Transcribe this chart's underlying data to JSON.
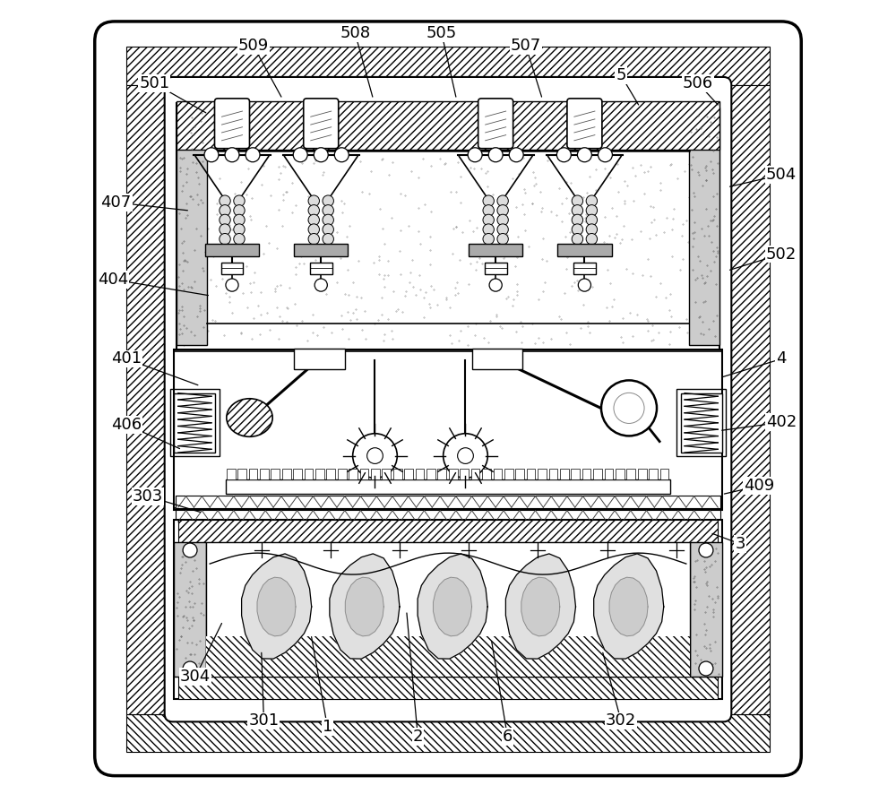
{
  "bg_color": "#ffffff",
  "line_color": "#000000",
  "font_size": 13,
  "label_positions": {
    "501": {
      "text": [
        0.13,
        0.895
      ],
      "arrow": [
        0.195,
        0.858
      ]
    },
    "509": {
      "text": [
        0.255,
        0.942
      ],
      "arrow": [
        0.29,
        0.878
      ]
    },
    "508": {
      "text": [
        0.383,
        0.958
      ],
      "arrow": [
        0.405,
        0.878
      ]
    },
    "505": {
      "text": [
        0.492,
        0.958
      ],
      "arrow": [
        0.51,
        0.878
      ]
    },
    "507": {
      "text": [
        0.598,
        0.942
      ],
      "arrow": [
        0.618,
        0.878
      ]
    },
    "5": {
      "text": [
        0.718,
        0.905
      ],
      "arrow": [
        0.74,
        0.868
      ]
    },
    "506": {
      "text": [
        0.815,
        0.895
      ],
      "arrow": [
        0.84,
        0.868
      ]
    },
    "504": {
      "text": [
        0.92,
        0.78
      ],
      "arrow": [
        0.855,
        0.765
      ]
    },
    "502": {
      "text": [
        0.92,
        0.68
      ],
      "arrow": [
        0.855,
        0.66
      ]
    },
    "4": {
      "text": [
        0.92,
        0.548
      ],
      "arrow": [
        0.845,
        0.525
      ]
    },
    "402": {
      "text": [
        0.92,
        0.468
      ],
      "arrow": [
        0.845,
        0.458
      ]
    },
    "409": {
      "text": [
        0.892,
        0.388
      ],
      "arrow": [
        0.848,
        0.378
      ]
    },
    "3": {
      "text": [
        0.868,
        0.315
      ],
      "arrow": [
        0.833,
        0.328
      ]
    },
    "302": {
      "text": [
        0.718,
        0.092
      ],
      "arrow": [
        0.695,
        0.178
      ]
    },
    "6": {
      "text": [
        0.575,
        0.072
      ],
      "arrow": [
        0.555,
        0.192
      ]
    },
    "2": {
      "text": [
        0.462,
        0.072
      ],
      "arrow": [
        0.448,
        0.228
      ]
    },
    "1": {
      "text": [
        0.348,
        0.085
      ],
      "arrow": [
        0.328,
        0.198
      ]
    },
    "301": {
      "text": [
        0.268,
        0.092
      ],
      "arrow": [
        0.265,
        0.178
      ]
    },
    "304": {
      "text": [
        0.182,
        0.148
      ],
      "arrow": [
        0.215,
        0.215
      ]
    },
    "303": {
      "text": [
        0.122,
        0.375
      ],
      "arrow": [
        0.188,
        0.355
      ]
    },
    "406": {
      "text": [
        0.095,
        0.465
      ],
      "arrow": [
        0.162,
        0.435
      ]
    },
    "401": {
      "text": [
        0.095,
        0.548
      ],
      "arrow": [
        0.185,
        0.515
      ]
    },
    "404": {
      "text": [
        0.078,
        0.648
      ],
      "arrow": [
        0.198,
        0.628
      ]
    },
    "407": {
      "text": [
        0.082,
        0.745
      ],
      "arrow": [
        0.172,
        0.735
      ]
    }
  }
}
